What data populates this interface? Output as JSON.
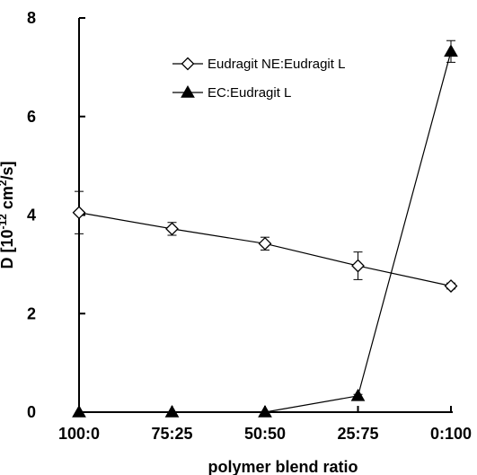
{
  "chart_data": {
    "type": "line",
    "categories": [
      "100:0",
      "75:25",
      "50:50",
      "25:75",
      "0:100"
    ],
    "xlabel": "polymer blend ratio",
    "ylabel_parts": {
      "base": "D [10",
      "exp1": "-12",
      "mid": " cm",
      "exp2": "2",
      "end": "/s]"
    },
    "ylim": [
      0,
      8
    ],
    "yticks": [
      "0",
      "2",
      "4",
      "6",
      "8"
    ],
    "legend_position": "top-center",
    "grid": false,
    "series": [
      {
        "name": "Eudragit NE:Eudragit L",
        "marker": "open-diamond",
        "color": "#000000",
        "values": [
          4.05,
          3.72,
          3.42,
          2.97,
          2.56
        ],
        "errors": [
          0.43,
          0.13,
          0.13,
          0.28,
          0.06
        ]
      },
      {
        "name": "EC:Eudragit L",
        "marker": "filled-triangle",
        "color": "#000000",
        "values": [
          0.0,
          0.0,
          0.0,
          0.33,
          7.32
        ],
        "errors": [
          0.0,
          0.0,
          0.0,
          0.03,
          0.22
        ]
      }
    ]
  }
}
